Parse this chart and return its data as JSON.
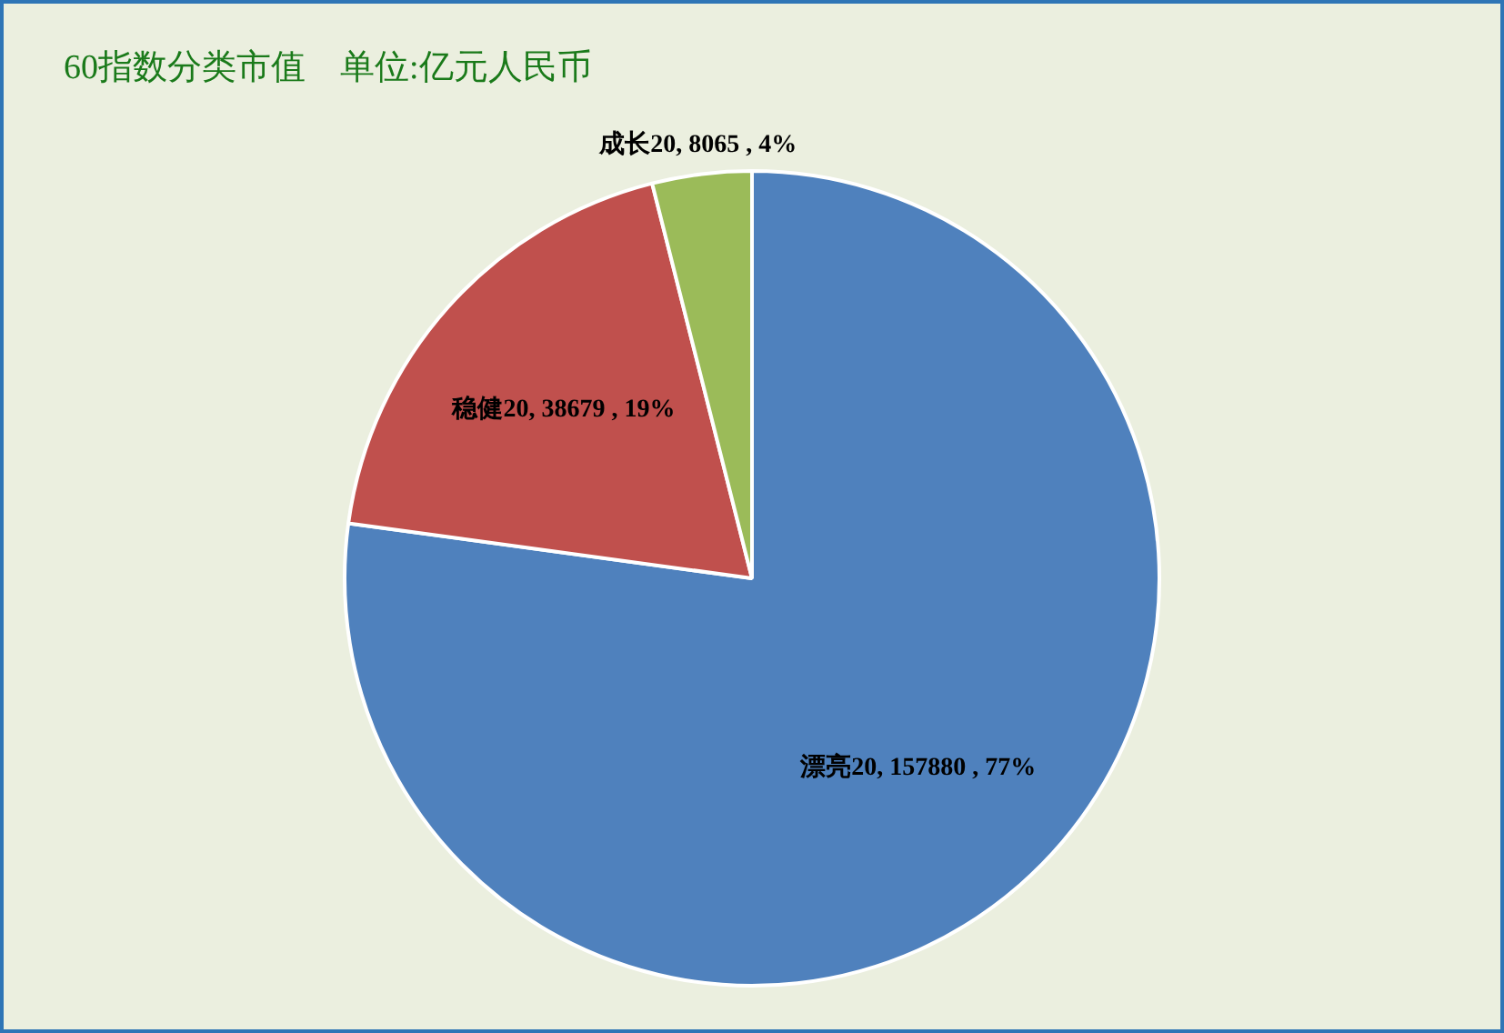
{
  "chart_data": {
    "type": "pie",
    "title": "60指数分类市值　单位:亿元人民币",
    "categories": [
      "漂亮20",
      "稳健20",
      "成长20"
    ],
    "values": [
      157880,
      38679,
      8065
    ],
    "colors": [
      "#4f81bd",
      "#c0504d",
      "#9bbb59"
    ],
    "value_labels": [
      "157880 , 77%",
      "38679 , 19%",
      "8065 , 4%"
    ],
    "legend": false
  }
}
